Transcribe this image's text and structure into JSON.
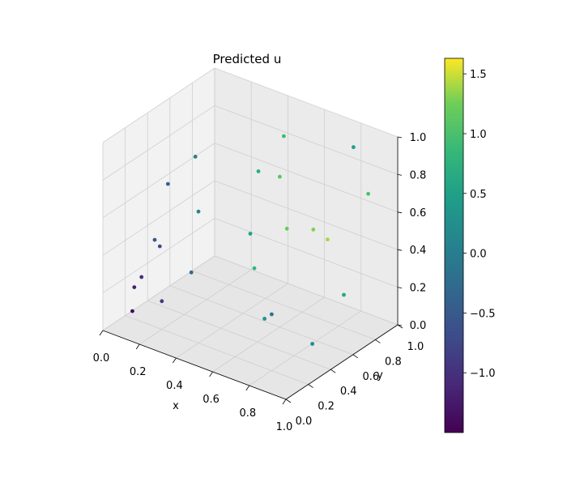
{
  "chart_data": {
    "type": "scatter",
    "title": "Predicted u",
    "xlabel": "x",
    "ylabel": "y",
    "zlabel": "",
    "xlim": [
      0.0,
      1.0
    ],
    "ylim": [
      0.0,
      1.0
    ],
    "zlim": [
      0.0,
      1.0
    ],
    "x_ticks": [
      "0.0",
      "0.2",
      "0.4",
      "0.6",
      "0.8",
      "1.0"
    ],
    "y_ticks": [
      "0.0",
      "0.2",
      "0.4",
      "0.6",
      "0.8",
      "1.0"
    ],
    "z_ticks": [
      "0.0",
      "0.2",
      "0.4",
      "0.6",
      "0.8",
      "1.0"
    ],
    "grid": true,
    "colormap": "viridis",
    "colorbar": {
      "min": -1.5,
      "max": 1.63,
      "ticks": [
        1.5,
        1.0,
        0.5,
        0.0,
        -0.5,
        -1.0
      ],
      "tick_labels": [
        "1.5",
        "1.0",
        "0.5",
        "0.0",
        "−0.5",
        "−1.0"
      ]
    },
    "points": [
      [
        0.1,
        0.1,
        0.1,
        -1.4
      ],
      [
        0.08,
        0.15,
        0.2,
        -1.2
      ],
      [
        0.15,
        0.1,
        0.3,
        -1.0
      ],
      [
        0.2,
        0.2,
        0.15,
        -0.9
      ],
      [
        0.1,
        0.3,
        0.4,
        -0.6
      ],
      [
        0.25,
        0.1,
        0.5,
        -0.7
      ],
      [
        0.3,
        0.3,
        0.3,
        -0.3
      ],
      [
        0.05,
        0.5,
        0.6,
        -0.4
      ],
      [
        0.2,
        0.5,
        0.8,
        0.0
      ],
      [
        0.4,
        0.2,
        0.7,
        0.1
      ],
      [
        0.5,
        0.5,
        0.5,
        0.5
      ],
      [
        0.5,
        0.8,
        0.9,
        0.9
      ],
      [
        0.6,
        0.6,
        0.8,
        1.1
      ],
      [
        0.7,
        0.5,
        0.6,
        1.2
      ],
      [
        0.8,
        0.7,
        0.5,
        1.4
      ],
      [
        0.9,
        0.9,
        0.7,
        1.0
      ],
      [
        0.6,
        0.9,
        0.4,
        1.3
      ],
      [
        0.7,
        0.3,
        0.2,
        0.3
      ],
      [
        0.8,
        0.2,
        0.3,
        -0.2
      ],
      [
        0.9,
        0.4,
        0.1,
        0.2
      ],
      [
        0.95,
        0.6,
        0.3,
        0.6
      ],
      [
        0.4,
        0.7,
        0.2,
        0.8
      ],
      [
        0.3,
        0.9,
        0.6,
        0.7
      ],
      [
        0.85,
        0.85,
        0.95,
        0.5
      ]
    ]
  }
}
